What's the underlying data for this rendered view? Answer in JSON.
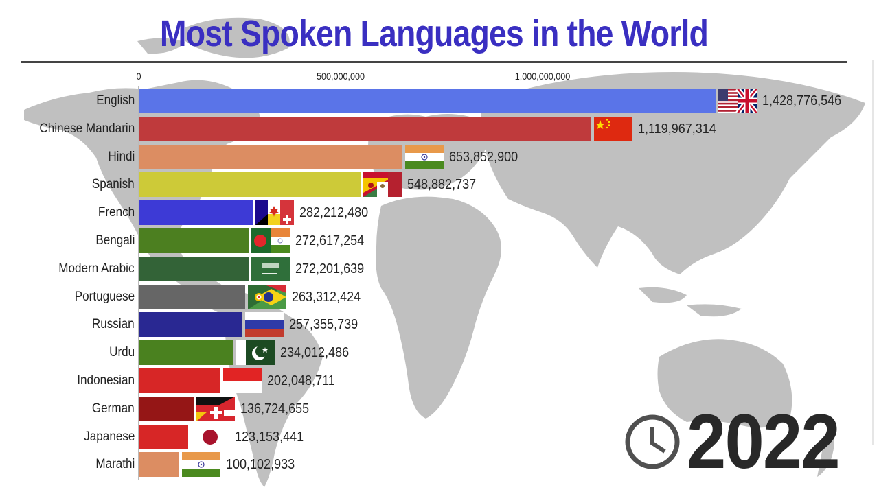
{
  "title": "Most Spoken Languages in the World",
  "year": "2022",
  "icons": {
    "timer": "clock-icon"
  },
  "axis": {
    "ticks": [
      {
        "label": "0",
        "value": 0
      },
      {
        "label": "500,000,000",
        "value": 500000000
      },
      {
        "label": "1,000,000,000",
        "value": 1000000000
      }
    ]
  },
  "colors": {
    "title": "#3a2fc1",
    "map": "#c0c0c0",
    "year": "#282828"
  },
  "chart_data": {
    "type": "bar",
    "orientation": "horizontal",
    "title": "Most Spoken Languages in the World",
    "subtitle": "2022",
    "xlabel": "",
    "ylabel": "",
    "xlim": [
      0,
      1500000000
    ],
    "grid": true,
    "legend": "none",
    "categories": [
      "English",
      "Chinese Mandarin",
      "Hindi",
      "Spanish",
      "French",
      "Bengali",
      "Modern Arabic",
      "Portuguese",
      "Russian",
      "Urdu",
      "Indonesian",
      "German",
      "Japanese",
      "Marathi"
    ],
    "values": [
      1428776546,
      1119967314,
      653852900,
      548882737,
      282212480,
      272617254,
      272201639,
      263312424,
      257355739,
      234012486,
      202048711,
      136724655,
      123153441,
      100102933
    ],
    "bars": [
      {
        "language": "English",
        "value": 1428776546,
        "value_label": "1,428,776,546",
        "color": "#5a74e8",
        "flag": "us-uk"
      },
      {
        "language": "Chinese Mandarin",
        "value": 1119967314,
        "value_label": "1,119,967,314",
        "color": "#bf3a3c",
        "flag": "china"
      },
      {
        "language": "Hindi",
        "value": 653852900,
        "value_label": "653,852,900",
        "color": "#dc8d62",
        "flag": "india"
      },
      {
        "language": "Spanish",
        "value": 548882737,
        "value_label": "548,882,737",
        "color": "#cdca38",
        "flag": "spain-mexico"
      },
      {
        "language": "French",
        "value": 282212480,
        "value_label": "282,212,480",
        "color": "#3d3ad6",
        "flag": "france-canada-swiss"
      },
      {
        "language": "Bengali",
        "value": 272617254,
        "value_label": "272,617,254",
        "color": "#4c7f20",
        "flag": "bangladesh-india"
      },
      {
        "language": "Modern Arabic",
        "value": 272201639,
        "value_label": "272,201,639",
        "color": "#336337",
        "flag": "saudi-arabia"
      },
      {
        "language": "Portuguese",
        "value": 263312424,
        "value_label": "263,312,424",
        "color": "#666666",
        "flag": "portugal-brazil"
      },
      {
        "language": "Russian",
        "value": 257355739,
        "value_label": "257,355,739",
        "color": "#292892",
        "flag": "russia"
      },
      {
        "language": "Urdu",
        "value": 234012486,
        "value_label": "234,012,486",
        "color": "#4a811f",
        "flag": "pakistan"
      },
      {
        "language": "Indonesian",
        "value": 202048711,
        "value_label": "202,048,711",
        "color": "#d72626",
        "flag": "indonesia"
      },
      {
        "language": "German",
        "value": 136724655,
        "value_label": "136,724,655",
        "color": "#951616",
        "flag": "germany-swiss"
      },
      {
        "language": "Japanese",
        "value": 123153441,
        "value_label": "123,153,441",
        "color": "#d72626",
        "flag": "japan"
      },
      {
        "language": "Marathi",
        "value": 100102933,
        "value_label": "100,102,933",
        "color": "#dc8d62",
        "flag": "india"
      }
    ]
  }
}
